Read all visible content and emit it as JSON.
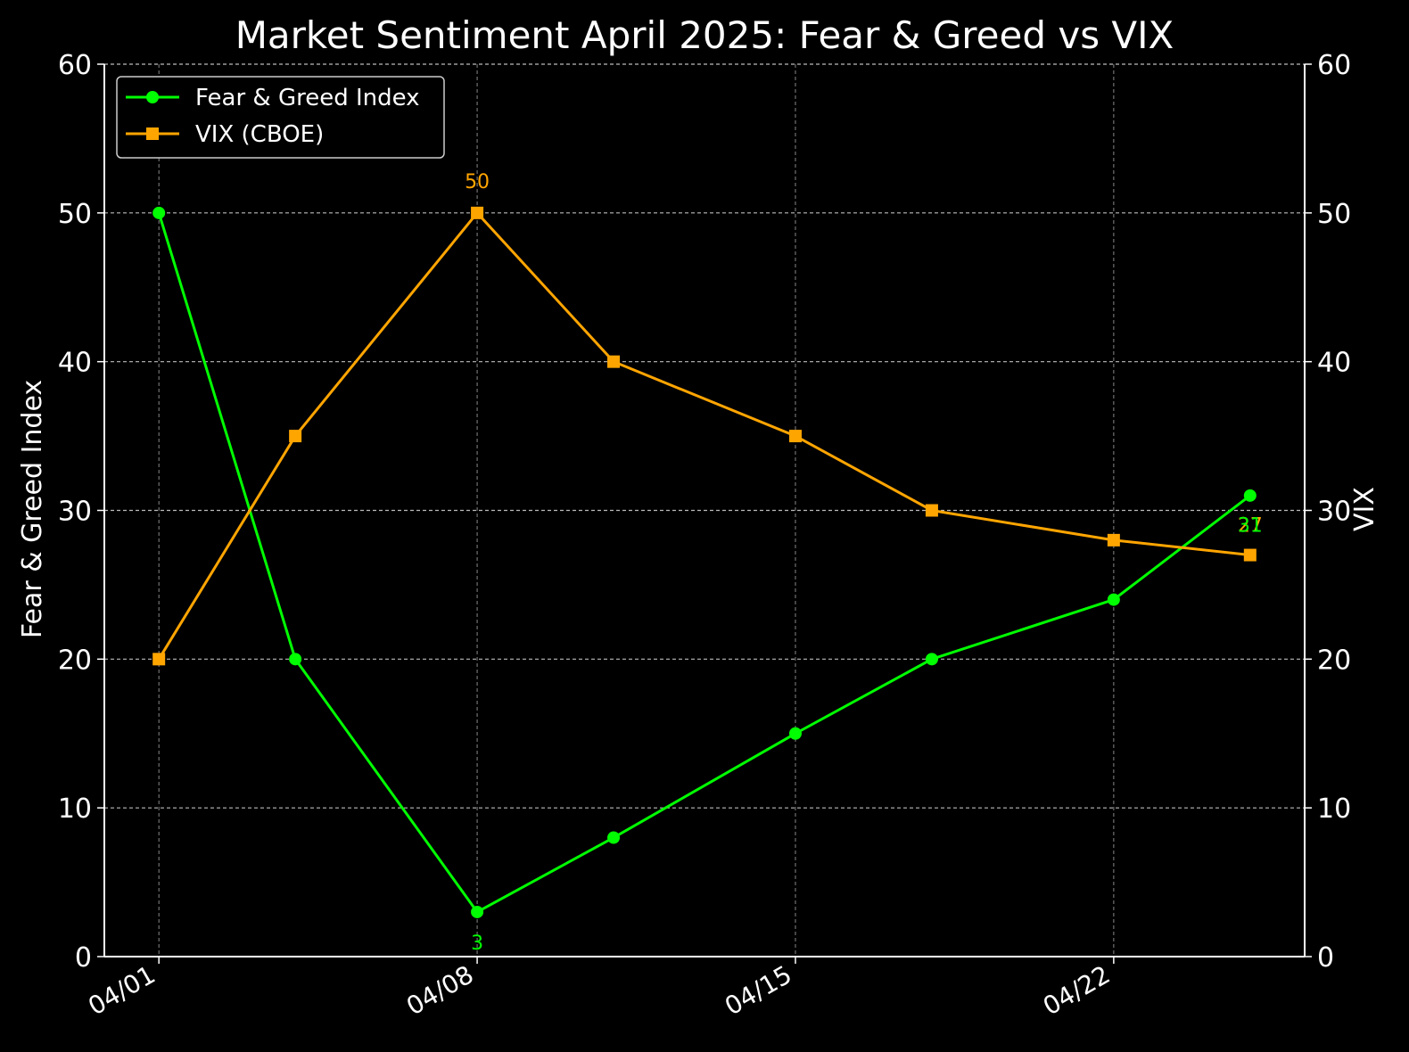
{
  "chart_data": {
    "type": "line",
    "title": "Market Sentiment April 2025: Fear & Greed vs VIX",
    "ylabel_left": "Fear & Greed Index",
    "ylabel_right": "VIX",
    "ylim_left": [
      0,
      60
    ],
    "ylim_right": [
      0,
      60
    ],
    "yticks": [
      0,
      10,
      20,
      30,
      40,
      50,
      60
    ],
    "x": [
      "2025-04-01",
      "2025-04-04",
      "2025-04-08",
      "2025-04-11",
      "2025-04-15",
      "2025-04-18",
      "2025-04-22",
      "2025-04-25"
    ],
    "xticks": [
      "04/01",
      "04/08",
      "04/15",
      "04/22"
    ],
    "xtick_dates": [
      "2025-04-01",
      "2025-04-08",
      "2025-04-15",
      "2025-04-22"
    ],
    "grid": true,
    "legend": "top-left",
    "series": [
      {
        "name": "Fear & Greed Index",
        "axis": "left",
        "color": "#00ff00",
        "marker": "circle",
        "values": [
          50,
          20,
          3,
          8,
          15,
          20,
          24,
          31
        ]
      },
      {
        "name": "VIX (CBOE)",
        "axis": "right",
        "color": "#ffa500",
        "marker": "square",
        "values": [
          20,
          35,
          50,
          40,
          35,
          30,
          28,
          27
        ]
      }
    ],
    "annotations": [
      {
        "text": "50",
        "series": 1,
        "index": 2,
        "position": "above",
        "color": "#ffa500"
      },
      {
        "text": "3",
        "series": 0,
        "index": 2,
        "position": "below",
        "color": "#00ff00"
      },
      {
        "text": "27",
        "series": 1,
        "index": 7,
        "position": "above",
        "color": "#ffa500"
      },
      {
        "text": "31",
        "series": 0,
        "index": 7,
        "position": "below",
        "color": "#00ff00"
      }
    ]
  }
}
